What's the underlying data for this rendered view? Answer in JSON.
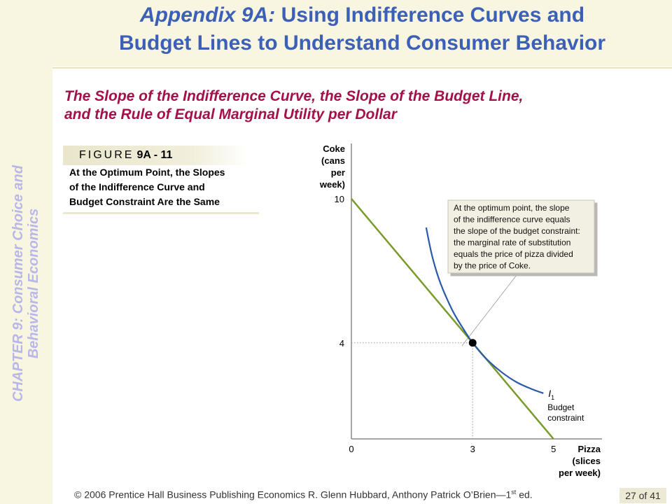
{
  "sidebar": {
    "line1": "CHAPTER 9:  Consumer Choice and",
    "line2": "Behavioral Economics"
  },
  "header": {
    "title_italic": "Appendix 9A:",
    "title_rest": " Using Indifference Curves and",
    "title_line2": "Budget Lines to Understand Consumer Behavior"
  },
  "subtitle": {
    "line1": "The Slope of the Indifference Curve, the Slope of the Budget Line,",
    "line2": "and the Rule of Equal Marginal Utility per Dollar"
  },
  "figure": {
    "label": "FIGURE",
    "number": "9A - 11",
    "caption": [
      "At the Optimum Point, the Slopes",
      "of the Indifference Curve and",
      "Budget Constraint Are the Same"
    ]
  },
  "chart_data": {
    "type": "line",
    "title": "",
    "ylabel": [
      "Coke",
      "(cans",
      "per",
      "week)"
    ],
    "xlabel": [
      "Pizza",
      "(slices",
      "per week)"
    ],
    "xlim": [
      0,
      6.2
    ],
    "ylim": [
      0,
      12.3
    ],
    "y_ticks": [
      {
        "value": 4,
        "label": "4"
      },
      {
        "value": 10,
        "label": "10"
      }
    ],
    "x_ticks": [
      {
        "value": 0,
        "label": "0"
      },
      {
        "value": 3,
        "label": "3"
      },
      {
        "value": 5,
        "label": "5"
      }
    ],
    "series": [
      {
        "name": "Budget constraint",
        "points": [
          [
            0,
            10
          ],
          [
            5,
            0
          ]
        ],
        "color": "#7a9a2a"
      },
      {
        "name": "I",
        "subscript": "1",
        "points": [
          [
            1.85,
            8.8
          ],
          [
            2.0,
            7.6
          ],
          [
            2.2,
            6.5
          ],
          [
            2.5,
            5.35
          ],
          [
            2.8,
            4.5
          ],
          [
            3.0,
            4.0
          ],
          [
            3.3,
            3.4
          ],
          [
            3.7,
            2.8
          ],
          [
            4.1,
            2.35
          ],
          [
            4.5,
            2.05
          ],
          [
            4.75,
            1.9
          ]
        ],
        "color": "#2a5aa8"
      }
    ],
    "optimum_point": {
      "x": 3,
      "y": 4
    },
    "annotation": [
      "At the optimum point, the slope",
      "of the indifference curve equals",
      "the slope of the budget constraint:",
      "the marginal rate of substitution",
      "equals the price of pizza divided",
      "by the price of Coke."
    ],
    "grid": false
  },
  "footer": {
    "text_before_sup": "© 2006 Prentice Hall Business Publishing   Economics  R. Glenn Hubbard, Anthony Patrick O’Brien—1",
    "sup": "st",
    "text_after_sup": " ed.",
    "page": "27 of 41"
  }
}
